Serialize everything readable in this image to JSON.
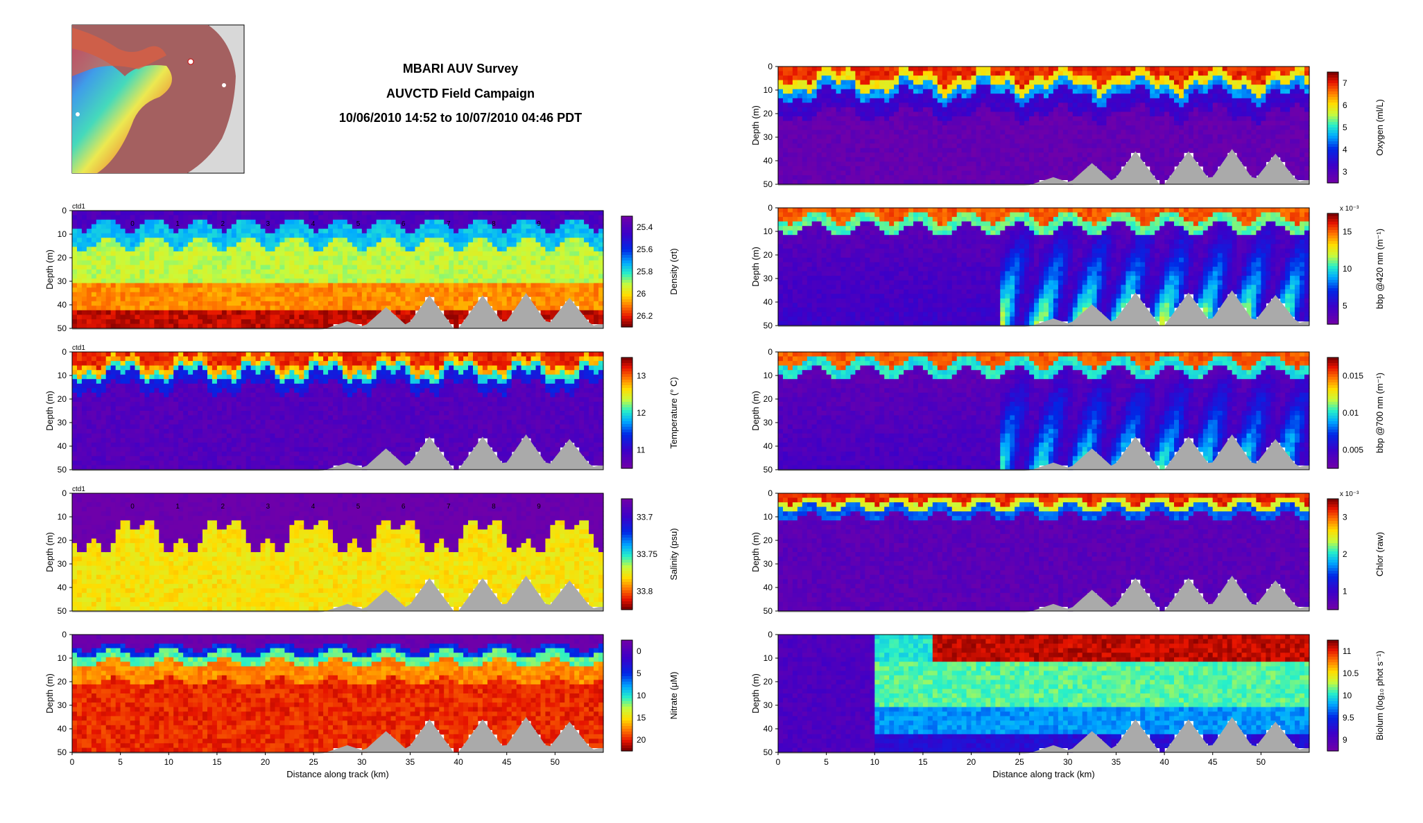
{
  "header": {
    "title_line1": "MBARI AUV Survey",
    "title_line2": "AUVCTD Field Campaign",
    "title_line3": "10/06/2010 14:52 to 10/07/2010 04:46 PDT"
  },
  "colors": {
    "bathymetry": "#aaaaaa",
    "map_land": "#d8d8d8",
    "map_sea_deep": "#a46060"
  },
  "chart_data": [
    {
      "id": "density",
      "type": "heatmap",
      "tag": "ctd1",
      "ylabel": "Depth (m)",
      "xlabel": "",
      "cbar_label": "Density (σt)",
      "cbar_ticks": [
        "25.4",
        "25.6",
        "25.8",
        "26",
        "26.2"
      ],
      "xlim": [
        0,
        55
      ],
      "ylim": [
        0,
        50
      ],
      "x_ticks": [],
      "y_ticks": [
        "0",
        "10",
        "20",
        "30",
        "40",
        "50"
      ],
      "annotations": [
        "0",
        "1",
        "2",
        "3",
        "4",
        "5",
        "6",
        "7",
        "8",
        "9"
      ]
    },
    {
      "id": "temperature",
      "type": "heatmap",
      "tag": "ctd1",
      "ylabel": "Depth (m)",
      "xlabel": "",
      "cbar_label": "Temperature (° C)",
      "cbar_ticks": [
        "13",
        "12",
        "11"
      ],
      "xlim": [
        0,
        55
      ],
      "ylim": [
        0,
        50
      ],
      "x_ticks": [],
      "y_ticks": [
        "0",
        "10",
        "20",
        "30",
        "40",
        "50"
      ]
    },
    {
      "id": "salinity",
      "type": "heatmap",
      "tag": "ctd1",
      "ylabel": "Depth (m)",
      "xlabel": "",
      "cbar_label": "Salinity (psu)",
      "cbar_ticks": [
        "33.7",
        "33.75",
        "33.8"
      ],
      "xlim": [
        0,
        55
      ],
      "ylim": [
        0,
        50
      ],
      "x_ticks": [],
      "y_ticks": [
        "0",
        "10",
        "20",
        "30",
        "40",
        "50"
      ],
      "annotations": [
        "0",
        "1",
        "2",
        "3",
        "4",
        "5",
        "6",
        "7",
        "8",
        "9"
      ]
    },
    {
      "id": "nitrate",
      "type": "heatmap",
      "tag": "",
      "ylabel": "Depth (m)",
      "xlabel": "Distance along track (km)",
      "cbar_label": "Nitrate (μM)",
      "cbar_ticks": [
        "0",
        "5",
        "10",
        "15",
        "20"
      ],
      "xlim": [
        0,
        55
      ],
      "ylim": [
        0,
        50
      ],
      "x_ticks": [
        "0",
        "5",
        "10",
        "15",
        "20",
        "25",
        "30",
        "35",
        "40",
        "45",
        "50"
      ],
      "y_ticks": [
        "0",
        "10",
        "20",
        "30",
        "40",
        "50"
      ]
    },
    {
      "id": "oxygen",
      "type": "heatmap",
      "tag": "",
      "ylabel": "Depth (m)",
      "xlabel": "",
      "cbar_label": "Oxygen (ml/L)",
      "cbar_ticks": [
        "7",
        "6",
        "5",
        "4",
        "3"
      ],
      "xlim": [
        0,
        55
      ],
      "ylim": [
        0,
        50
      ],
      "x_ticks": [],
      "y_ticks": [
        "0",
        "10",
        "20",
        "30",
        "40",
        "50"
      ]
    },
    {
      "id": "bbp420",
      "type": "heatmap",
      "tag": "",
      "ylabel": "Depth (m)",
      "xlabel": "",
      "cbar_label": "bbp @420 nm (m⁻¹)",
      "cbar_exponent": "x 10⁻³",
      "cbar_ticks": [
        "15",
        "10",
        "5"
      ],
      "xlim": [
        0,
        55
      ],
      "ylim": [
        0,
        50
      ],
      "x_ticks": [],
      "y_ticks": [
        "0",
        "10",
        "20",
        "30",
        "40",
        "50"
      ]
    },
    {
      "id": "bbp700",
      "type": "heatmap",
      "tag": "",
      "ylabel": "Depth (m)",
      "xlabel": "",
      "cbar_label": "bbp @700 nm (m⁻¹)",
      "cbar_ticks": [
        "0.015",
        "0.01",
        "0.005"
      ],
      "xlim": [
        0,
        55
      ],
      "ylim": [
        0,
        50
      ],
      "x_ticks": [],
      "y_ticks": [
        "0",
        "10",
        "20",
        "30",
        "40",
        "50"
      ]
    },
    {
      "id": "chlor",
      "type": "heatmap",
      "tag": "",
      "ylabel": "Depth (m)",
      "xlabel": "",
      "cbar_label": "Chlor (raw)",
      "cbar_exponent": "x 10⁻³",
      "cbar_ticks": [
        "3",
        "2",
        "1"
      ],
      "xlim": [
        0,
        55
      ],
      "ylim": [
        0,
        50
      ],
      "x_ticks": [],
      "y_ticks": [
        "0",
        "10",
        "20",
        "30",
        "40",
        "50"
      ]
    },
    {
      "id": "biolum",
      "type": "heatmap",
      "tag": "",
      "ylabel": "Depth (m)",
      "xlabel": "Distance along track (km)",
      "cbar_label": "Biolum (log₁₀ phot s⁻¹)",
      "cbar_ticks": [
        "11",
        "10.5",
        "10",
        "9.5",
        "9"
      ],
      "xlim": [
        0,
        55
      ],
      "ylim": [
        0,
        50
      ],
      "x_ticks": [
        "0",
        "5",
        "10",
        "15",
        "20",
        "25",
        "30",
        "35",
        "40",
        "45",
        "50"
      ],
      "y_ticks": [
        "0",
        "10",
        "20",
        "30",
        "40",
        "50"
      ]
    }
  ]
}
